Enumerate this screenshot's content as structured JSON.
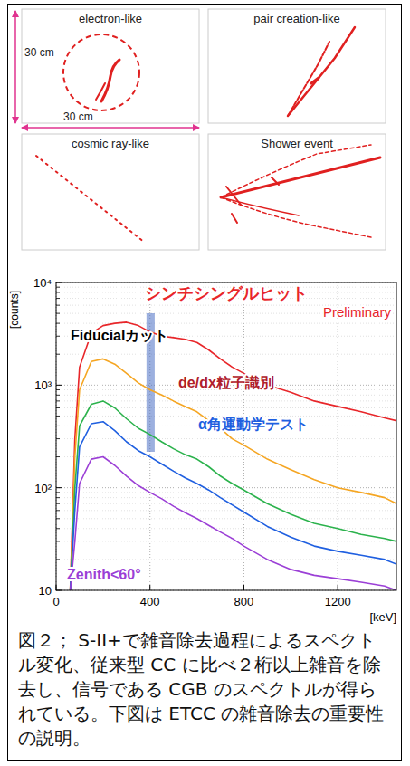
{
  "event_panels": [
    {
      "title": "electron-like"
    },
    {
      "title": "pair creation-like"
    },
    {
      "title": "cosmic ray-like"
    },
    {
      "title": "Shower event"
    }
  ],
  "scale_labels": [
    "30 cm",
    "30 cm"
  ],
  "chart_data": {
    "type": "line",
    "log": "y",
    "grid": true,
    "xlabel": "[keV]",
    "ylabel": "[counts]",
    "annotations": [
      "Preliminary"
    ],
    "band": [
      385,
      420
    ],
    "xlim": [
      0,
      1450
    ],
    "xticks": [
      0,
      400,
      800,
      1200
    ],
    "ylim": [
      10,
      10000
    ],
    "yticks": [
      10,
      {
        "value": 100,
        "label": "10²"
      },
      {
        "value": 1000,
        "label": "10³"
      },
      {
        "value": 10000,
        "label": "10⁴"
      }
    ],
    "x": [
      60,
      80,
      100,
      150,
      200,
      250,
      300,
      350,
      400,
      450,
      500,
      550,
      600,
      650,
      700,
      750,
      800,
      900,
      1000,
      1100,
      1200,
      1300,
      1400,
      1450
    ],
    "series": [
      {
        "name": "シンチシングルヒット",
        "color": "#e8262a",
        "values": [
          10,
          300,
          1500,
          3200,
          3800,
          4000,
          4100,
          3800,
          3300,
          3000,
          2900,
          2800,
          2600,
          2200,
          1800,
          1500,
          1300,
          1000,
          850,
          700,
          620,
          550,
          480,
          450
        ]
      },
      {
        "name": "Fiducialカット",
        "color": "#f5a623",
        "values": [
          10,
          200,
          900,
          1700,
          1800,
          1600,
          1300,
          1050,
          900,
          800,
          700,
          620,
          550,
          450,
          380,
          300,
          260,
          190,
          150,
          120,
          100,
          90,
          80,
          70
        ]
      },
      {
        "name": "de/dx粒子識別",
        "color": "#2bb24c",
        "values": [
          10,
          100,
          400,
          650,
          700,
          600,
          470,
          380,
          330,
          280,
          240,
          210,
          190,
          160,
          130,
          110,
          95,
          70,
          55,
          45,
          40,
          35,
          32,
          30
        ]
      },
      {
        "name": "α角運動学テスト",
        "color": "#1f5fe0",
        "values": [
          10,
          60,
          250,
          420,
          440,
          360,
          280,
          230,
          200,
          170,
          145,
          125,
          110,
          95,
          80,
          68,
          58,
          42,
          33,
          27,
          24,
          22,
          20,
          18
        ]
      },
      {
        "name": "Zenith<60°",
        "color": "#9b3fd6",
        "values": [
          10,
          30,
          110,
          190,
          200,
          165,
          130,
          105,
          90,
          78,
          66,
          57,
          50,
          43,
          37,
          32,
          27,
          20,
          16,
          14,
          13,
          12,
          11,
          10
        ]
      }
    ]
  },
  "caption": "図２； S-II+で雑音除去過程によるスペクトル変化、従来型 CC に比べ２桁以上雑音を除去し、信号である CGB のスペクトルが得られている。下図は ETCC の雑音除去の重要性の説明。"
}
